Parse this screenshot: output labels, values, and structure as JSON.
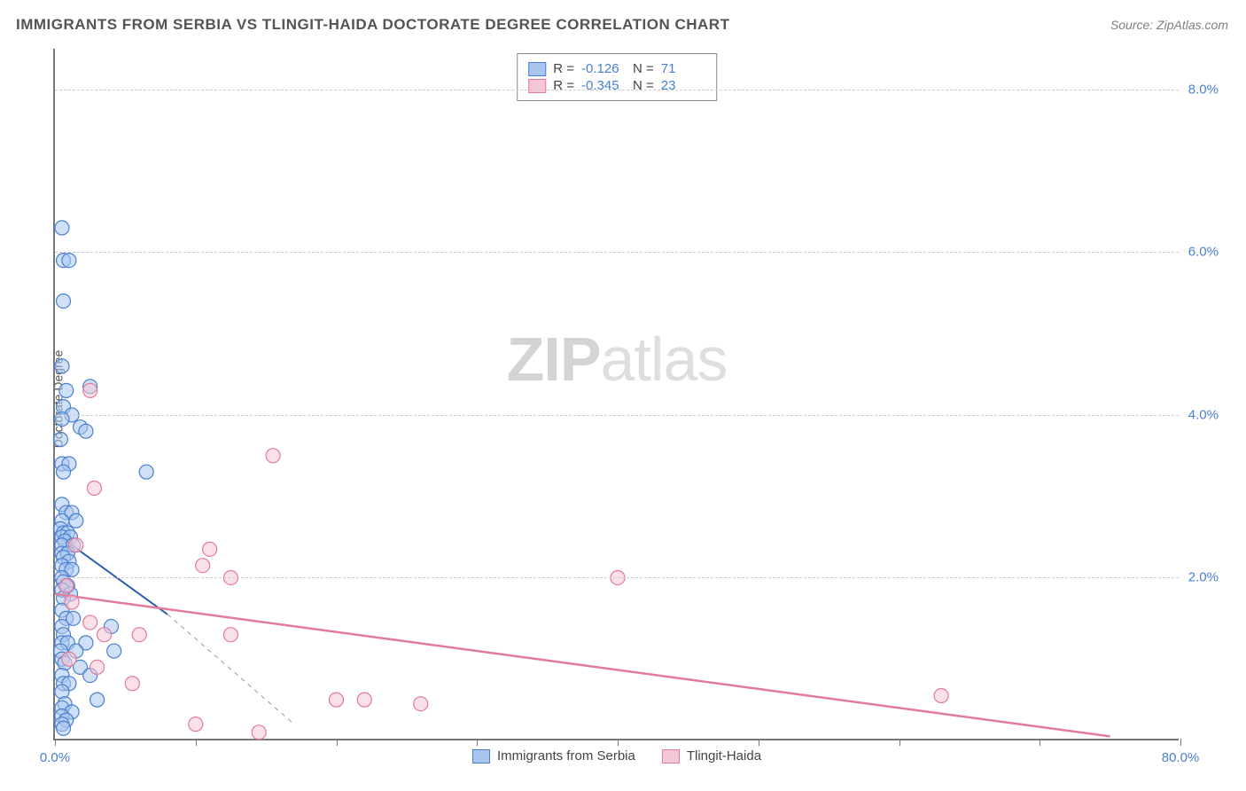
{
  "title": "IMMIGRANTS FROM SERBIA VS TLINGIT-HAIDA DOCTORATE DEGREE CORRELATION CHART",
  "source": "Source: ZipAtlas.com",
  "y_axis_label": "Doctorate Degree",
  "watermark_a": "ZIP",
  "watermark_b": "atlas",
  "chart": {
    "type": "scatter",
    "background_color": "#ffffff",
    "grid_color": "#cccccc",
    "axis_color": "#777777",
    "tick_label_color": "#4a7fd0",
    "xlim": [
      0,
      80
    ],
    "ylim": [
      0,
      8.5
    ],
    "y_ticks": [
      {
        "value": 2.0,
        "label": "2.0%"
      },
      {
        "value": 4.0,
        "label": "4.0%"
      },
      {
        "value": 6.0,
        "label": "6.0%"
      },
      {
        "value": 8.0,
        "label": "8.0%"
      }
    ],
    "x_ticks": [
      0,
      10,
      20,
      30,
      40,
      50,
      60,
      70,
      80
    ],
    "x_tick_labels": {
      "start": "0.0%",
      "end": "80.0%"
    },
    "marker_radius": 8,
    "series": [
      {
        "name": "Immigrants from Serbia",
        "color_fill": "#a9c7ee",
        "color_stroke": "#4a7fd0",
        "fill_opacity": 0.55,
        "regression": {
          "x1": 0,
          "y1": 2.55,
          "x2": 8,
          "y2": 1.55,
          "dash_x2": 17,
          "dash_y2": 0.2,
          "color": "#2b5fb0",
          "width": 2
        },
        "R_label": "R =",
        "R": "-0.126",
        "N_label": "N =",
        "N": "71",
        "points": [
          [
            0.5,
            6.3
          ],
          [
            0.6,
            5.9
          ],
          [
            1.0,
            5.9
          ],
          [
            0.6,
            5.4
          ],
          [
            0.5,
            4.6
          ],
          [
            0.8,
            4.3
          ],
          [
            2.5,
            4.35
          ],
          [
            0.6,
            4.1
          ],
          [
            1.2,
            4.0
          ],
          [
            0.5,
            3.95
          ],
          [
            1.8,
            3.85
          ],
          [
            2.2,
            3.8
          ],
          [
            0.4,
            3.7
          ],
          [
            0.5,
            3.4
          ],
          [
            1.0,
            3.4
          ],
          [
            0.6,
            3.3
          ],
          [
            6.5,
            3.3
          ],
          [
            0.5,
            2.9
          ],
          [
            0.8,
            2.8
          ],
          [
            1.2,
            2.8
          ],
          [
            0.5,
            2.7
          ],
          [
            1.5,
            2.7
          ],
          [
            0.4,
            2.6
          ],
          [
            0.6,
            2.55
          ],
          [
            0.9,
            2.55
          ],
          [
            0.5,
            2.5
          ],
          [
            1.1,
            2.5
          ],
          [
            0.7,
            2.45
          ],
          [
            0.5,
            2.4
          ],
          [
            1.3,
            2.4
          ],
          [
            0.5,
            2.3
          ],
          [
            0.9,
            2.3
          ],
          [
            0.6,
            2.25
          ],
          [
            1.0,
            2.2
          ],
          [
            0.5,
            2.15
          ],
          [
            0.8,
            2.1
          ],
          [
            1.2,
            2.1
          ],
          [
            0.5,
            2.0
          ],
          [
            0.6,
            1.95
          ],
          [
            0.9,
            1.9
          ],
          [
            0.5,
            1.85
          ],
          [
            1.1,
            1.8
          ],
          [
            0.6,
            1.75
          ],
          [
            0.5,
            1.6
          ],
          [
            0.8,
            1.5
          ],
          [
            1.3,
            1.5
          ],
          [
            0.5,
            1.4
          ],
          [
            4.0,
            1.4
          ],
          [
            0.6,
            1.3
          ],
          [
            0.5,
            1.2
          ],
          [
            0.9,
            1.2
          ],
          [
            2.2,
            1.2
          ],
          [
            0.4,
            1.1
          ],
          [
            1.5,
            1.1
          ],
          [
            4.2,
            1.1
          ],
          [
            0.5,
            1.0
          ],
          [
            0.7,
            0.95
          ],
          [
            1.8,
            0.9
          ],
          [
            0.5,
            0.8
          ],
          [
            2.5,
            0.8
          ],
          [
            0.6,
            0.7
          ],
          [
            1.0,
            0.7
          ],
          [
            0.5,
            0.6
          ],
          [
            3.0,
            0.5
          ],
          [
            0.7,
            0.45
          ],
          [
            0.5,
            0.4
          ],
          [
            1.2,
            0.35
          ],
          [
            0.5,
            0.3
          ],
          [
            0.8,
            0.25
          ],
          [
            0.5,
            0.2
          ],
          [
            0.6,
            0.15
          ]
        ]
      },
      {
        "name": "Tlingit-Haida",
        "color_fill": "#f5c6d3",
        "color_stroke": "#e27a9a",
        "fill_opacity": 0.55,
        "regression": {
          "x1": 0,
          "y1": 1.8,
          "x2": 75,
          "y2": 0.05,
          "color": "#e27a9a",
          "width": 2.5
        },
        "R_label": "R =",
        "R": "-0.345",
        "N_label": "N =",
        "N": "23",
        "points": [
          [
            2.5,
            4.3
          ],
          [
            15.5,
            3.5
          ],
          [
            2.8,
            3.1
          ],
          [
            1.5,
            2.4
          ],
          [
            11.0,
            2.35
          ],
          [
            10.5,
            2.15
          ],
          [
            12.5,
            2.0
          ],
          [
            0.8,
            1.9
          ],
          [
            1.2,
            1.7
          ],
          [
            2.5,
            1.45
          ],
          [
            3.5,
            1.3
          ],
          [
            6.0,
            1.3
          ],
          [
            12.5,
            1.3
          ],
          [
            40.0,
            2.0
          ],
          [
            1.0,
            1.0
          ],
          [
            3.0,
            0.9
          ],
          [
            5.5,
            0.7
          ],
          [
            63.0,
            0.55
          ],
          [
            20.0,
            0.5
          ],
          [
            22.0,
            0.5
          ],
          [
            26.0,
            0.45
          ],
          [
            10.0,
            0.2
          ],
          [
            14.5,
            0.1
          ]
        ]
      }
    ]
  },
  "legend_bottom": [
    {
      "label": "Immigrants from Serbia",
      "fill": "#a9c7ee",
      "stroke": "#4a7fd0"
    },
    {
      "label": "Tlingit-Haida",
      "fill": "#f5c6d3",
      "stroke": "#e27a9a"
    }
  ]
}
